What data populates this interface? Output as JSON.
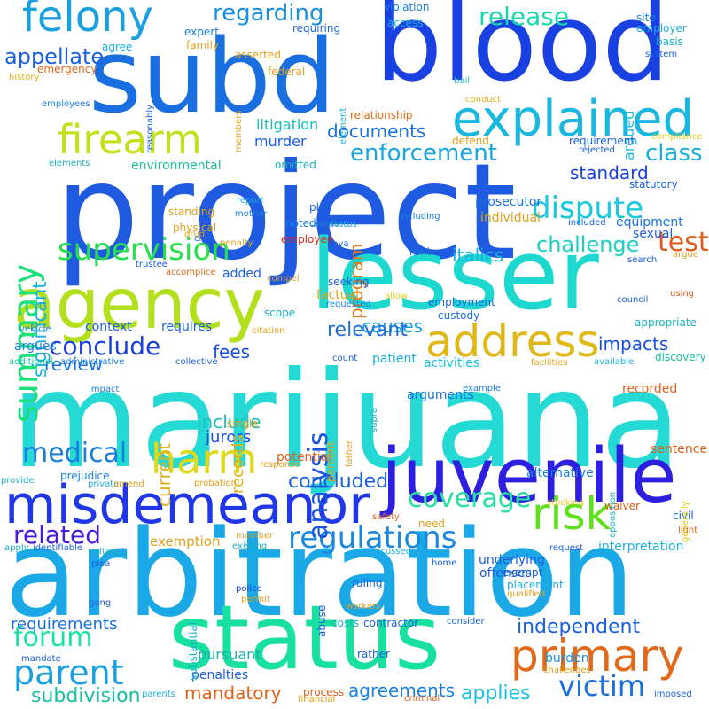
{
  "words": [
    {
      "text": "project",
      "color": "#1f5be0",
      "orientation": "horizontal"
    },
    {
      "text": "marijuana",
      "color": "#25d9d4",
      "orientation": "horizontal"
    },
    {
      "text": "arbitration",
      "color": "#1aa8e6",
      "orientation": "horizontal"
    },
    {
      "text": "blood",
      "color": "#1940e0",
      "orientation": "horizontal"
    },
    {
      "text": "subd",
      "color": "#1a6fe0",
      "orientation": "horizontal"
    },
    {
      "text": "lesser",
      "color": "#1cd8cf",
      "orientation": "horizontal"
    },
    {
      "text": "status",
      "color": "#18e0a0",
      "orientation": "horizontal"
    },
    {
      "text": "juvenile",
      "color": "#2d1fe0",
      "orientation": "horizontal"
    },
    {
      "text": "agency",
      "color": "#b2e01c",
      "orientation": "horizontal"
    },
    {
      "text": "misdemeanor",
      "color": "#1f37e8",
      "orientation": "horizontal"
    },
    {
      "text": "explained",
      "color": "#1ab8e0",
      "orientation": "horizontal"
    },
    {
      "text": "address",
      "color": "#e0b81a",
      "orientation": "horizontal"
    },
    {
      "text": "primary",
      "color": "#e06a1a",
      "orientation": "horizontal"
    },
    {
      "text": "felony",
      "color": "#1aa0e0",
      "orientation": "horizontal"
    },
    {
      "text": "firearm",
      "color": "#c4e01a",
      "orientation": "horizontal"
    },
    {
      "text": "risk",
      "color": "#5ee01a",
      "orientation": "horizontal"
    },
    {
      "text": "harm",
      "color": "#e0d81a",
      "orientation": "horizontal"
    },
    {
      "text": "summary",
      "color": "#1ce07a",
      "orientation": "vertical"
    },
    {
      "text": "supervision",
      "color": "#28e04e",
      "orientation": "horizontal"
    },
    {
      "text": "parent",
      "color": "#1a9fe0",
      "orientation": "horizontal"
    },
    {
      "text": "dispute",
      "color": "#1ac7e0",
      "orientation": "horizontal"
    },
    {
      "text": "regulations",
      "color": "#1a88e0",
      "orientation": "horizontal"
    },
    {
      "text": "coverage",
      "color": "#28e0a0",
      "orientation": "horizontal"
    },
    {
      "text": "medical",
      "color": "#1a80e0",
      "orientation": "horizontal"
    },
    {
      "text": "forum",
      "color": "#1ae0a8",
      "orientation": "horizontal"
    },
    {
      "text": "enforcement",
      "color": "#1aa5e0",
      "orientation": "horizontal"
    },
    {
      "text": "analysis",
      "color": "#1a55e0",
      "orientation": "vertical"
    },
    {
      "text": "victim",
      "color": "#1a70e0",
      "orientation": "horizontal"
    },
    {
      "text": "conclude",
      "color": "#1a40e0",
      "orientation": "horizontal"
    },
    {
      "text": "related",
      "color": "#4a1ae0",
      "orientation": "horizontal"
    },
    {
      "text": "regarding",
      "color": "#1a90e0",
      "orientation": "horizontal"
    },
    {
      "text": "release",
      "color": "#1ad8b0",
      "orientation": "horizontal"
    },
    {
      "text": "test",
      "color": "#e05a1a",
      "orientation": "horizontal"
    },
    {
      "text": "class",
      "color": "#1ab0e0",
      "orientation": "horizontal"
    },
    {
      "text": "significant",
      "color": "#1ab0e0",
      "orientation": "vertical"
    },
    {
      "text": "challenge",
      "color": "#1ad0c0",
      "orientation": "horizontal"
    },
    {
      "text": "independent",
      "color": "#1a60e0",
      "orientation": "horizontal"
    },
    {
      "text": "mandatory",
      "color": "#e0601a",
      "orientation": "horizontal"
    },
    {
      "text": "subdivision",
      "color": "#1ac0a0",
      "orientation": "horizontal"
    },
    {
      "text": "agreements",
      "color": "#1a80e0",
      "orientation": "horizontal"
    },
    {
      "text": "applies",
      "color": "#1ac0e0",
      "orientation": "horizontal"
    },
    {
      "text": "appellate",
      "color": "#1a60e0",
      "orientation": "horizontal"
    },
    {
      "text": "argued",
      "color": "#1ac0e0",
      "orientation": "vertical"
    },
    {
      "text": "documents",
      "color": "#1a70e0",
      "orientation": "horizontal"
    },
    {
      "text": "standard",
      "color": "#1a40e0",
      "orientation": "horizontal"
    },
    {
      "text": "italics",
      "color": "#1ab0e0",
      "orientation": "horizontal"
    },
    {
      "text": "impacts",
      "color": "#1a50e0",
      "orientation": "horizontal"
    },
    {
      "text": "fees",
      "color": "#1a50e0",
      "orientation": "horizontal"
    },
    {
      "text": "causes",
      "color": "#1aa0e0",
      "orientation": "horizontal"
    },
    {
      "text": "relevant",
      "color": "#1a70e0",
      "orientation": "horizontal"
    },
    {
      "text": "include",
      "color": "#1ac0c0",
      "orientation": "horizontal"
    },
    {
      "text": "current",
      "color": "#e0b01a",
      "orientation": "vertical"
    },
    {
      "text": "concluded",
      "color": "#1a60e0",
      "orientation": "horizontal"
    },
    {
      "text": "review",
      "color": "#1a70e0",
      "orientation": "horizontal"
    },
    {
      "text": "program",
      "color": "#e07a1a",
      "orientation": "vertical"
    },
    {
      "text": "burden",
      "color": "#1a90e0",
      "orientation": "horizontal"
    },
    {
      "text": "requirements",
      "color": "#1a70e0",
      "orientation": "horizontal"
    },
    {
      "text": "pursuant",
      "color": "#1ab0b0",
      "orientation": "horizontal"
    },
    {
      "text": "jurors",
      "color": "#1a50e0",
      "orientation": "horizontal"
    },
    {
      "text": "records",
      "color": "#e0b01a",
      "orientation": "vertical"
    },
    {
      "text": "exemption",
      "color": "#e0a01a",
      "orientation": "horizontal"
    },
    {
      "text": "environmental",
      "color": "#1ac0a0",
      "orientation": "horizontal"
    },
    {
      "text": "murder",
      "color": "#1a60e0",
      "orientation": "horizontal"
    },
    {
      "text": "litigation",
      "color": "#1ac0c0",
      "orientation": "horizontal"
    },
    {
      "text": "sentence",
      "color": "#e0601a",
      "orientation": "horizontal"
    },
    {
      "text": "recorded",
      "color": "#e0601a",
      "orientation": "horizontal"
    },
    {
      "text": "potential",
      "color": "#e0601a",
      "orientation": "horizontal"
    },
    {
      "text": "offenses",
      "color": "#1a60e0",
      "orientation": "horizontal"
    },
    {
      "text": "interpretation",
      "color": "#1ab0e0",
      "orientation": "horizontal"
    },
    {
      "text": "underlying",
      "color": "#1a60e0",
      "orientation": "horizontal"
    },
    {
      "text": "penalties",
      "color": "#1a60e0",
      "orientation": "horizontal"
    },
    {
      "text": "alternative",
      "color": "#1a80e0",
      "orientation": "horizontal"
    },
    {
      "text": "arguments",
      "color": "#1a70e0",
      "orientation": "horizontal"
    },
    {
      "text": "patient",
      "color": "#1ab0e0",
      "orientation": "horizontal"
    },
    {
      "text": "activities",
      "color": "#1ac0e0",
      "orientation": "horizontal"
    },
    {
      "text": "context",
      "color": "#1a60e0",
      "orientation": "horizontal"
    },
    {
      "text": "requires",
      "color": "#1a60e0",
      "orientation": "horizontal"
    },
    {
      "text": "argues",
      "color": "#1a80e0",
      "orientation": "horizontal"
    },
    {
      "text": "factual",
      "color": "#e0a01a",
      "orientation": "horizontal"
    },
    {
      "text": "prosecutor",
      "color": "#1a70e0",
      "orientation": "horizontal"
    },
    {
      "text": "individual",
      "color": "#e0a01a",
      "orientation": "horizontal"
    },
    {
      "text": "equipment",
      "color": "#1a70e0",
      "orientation": "horizontal"
    },
    {
      "text": "sexual",
      "color": "#1a60e0",
      "orientation": "horizontal"
    },
    {
      "text": "rent",
      "color": "#1a70e0",
      "orientation": "horizontal"
    },
    {
      "text": "added",
      "color": "#1a60e0",
      "orientation": "horizontal"
    },
    {
      "text": "standing",
      "color": "#e0a01a",
      "orientation": "horizontal"
    },
    {
      "text": "physical",
      "color": "#e0a01a",
      "orientation": "horizontal"
    },
    {
      "text": "employee",
      "color": "#e02a1a",
      "orientation": "horizontal"
    },
    {
      "text": "seeking",
      "color": "#1a60e0",
      "orientation": "horizontal"
    },
    {
      "text": "custody",
      "color": "#1a70e0",
      "orientation": "horizontal"
    },
    {
      "text": "employment",
      "color": "#1a60e0",
      "orientation": "horizontal"
    },
    {
      "text": "plan",
      "color": "#1a60e0",
      "orientation": "horizontal"
    },
    {
      "text": "noted",
      "color": "#1a80e0",
      "orientation": "horizontal"
    },
    {
      "text": "omitted",
      "color": "#1ab0c0",
      "orientation": "horizontal"
    },
    {
      "text": "federal",
      "color": "#e0a01a",
      "orientation": "horizontal"
    },
    {
      "text": "emergency",
      "color": "#e06a1a",
      "orientation": "horizontal"
    },
    {
      "text": "agree",
      "color": "#1ab0e0",
      "orientation": "horizontal"
    },
    {
      "text": "expert",
      "color": "#1a80e0",
      "orientation": "horizontal"
    },
    {
      "text": "requiring",
      "color": "#1a60e0",
      "orientation": "horizontal"
    },
    {
      "text": "violation",
      "color": "#1a80e0",
      "orientation": "horizontal"
    },
    {
      "text": "access",
      "color": "#1ab0e0",
      "orientation": "horizontal"
    },
    {
      "text": "site",
      "color": "#1a80e0",
      "orientation": "horizontal"
    },
    {
      "text": "employer",
      "color": "#1ab0e0",
      "orientation": "horizontal"
    },
    {
      "text": "basis",
      "color": "#1ab0c0",
      "orientation": "horizontal"
    },
    {
      "text": "system",
      "color": "#1a60e0",
      "orientation": "horizontal"
    },
    {
      "text": "family",
      "color": "#e0a01a",
      "orientation": "horizontal"
    },
    {
      "text": "asserted",
      "color": "#e0a01a",
      "orientation": "horizontal"
    },
    {
      "text": "history",
      "color": "#e0b01a",
      "orientation": "horizontal"
    },
    {
      "text": "employees",
      "color": "#1a80e0",
      "orientation": "horizontal"
    },
    {
      "text": "relationship",
      "color": "#e06a1a",
      "orientation": "horizontal"
    },
    {
      "text": "bail",
      "color": "#1ac0c0",
      "orientation": "horizontal"
    },
    {
      "text": "conduct",
      "color": "#e0b01a",
      "orientation": "horizontal"
    },
    {
      "text": "defend",
      "color": "#e0a01a",
      "orientation": "horizontal"
    },
    {
      "text": "requirement",
      "color": "#1a60e0",
      "orientation": "horizontal"
    },
    {
      "text": "rejected",
      "color": "#1a60e0",
      "orientation": "horizontal"
    },
    {
      "text": "compliance",
      "color": "#e0d01a",
      "orientation": "horizontal"
    },
    {
      "text": "elements",
      "color": "#1ab0c0",
      "orientation": "horizontal"
    },
    {
      "text": "statutory",
      "color": "#1a60e0",
      "orientation": "horizontal"
    },
    {
      "text": "penalty",
      "color": "#e0a01a",
      "orientation": "horizontal"
    },
    {
      "text": "report",
      "color": "#1ab0e0",
      "orientation": "horizontal"
    },
    {
      "text": "counts",
      "color": "#1a80e0",
      "orientation": "horizontal"
    },
    {
      "text": "mother",
      "color": "#1a80e0",
      "orientation": "horizontal"
    },
    {
      "text": "status",
      "color": "#1ab0e0",
      "orientation": "horizontal"
    },
    {
      "text": "including",
      "color": "#1a80e0",
      "orientation": "horizontal"
    },
    {
      "text": "included",
      "color": "#1a60e0",
      "orientation": "horizontal"
    },
    {
      "text": "drug",
      "color": "#e0a01a",
      "orientation": "horizontal"
    },
    {
      "text": "child",
      "color": "#1a60e0",
      "orientation": "horizontal"
    },
    {
      "text": "nova",
      "color": "#1a60e0",
      "orientation": "horizontal"
    },
    {
      "text": "argue",
      "color": "#e0a01a",
      "orientation": "horizontal"
    },
    {
      "text": "search",
      "color": "#1a60e0",
      "orientation": "horizontal"
    },
    {
      "text": "trustee",
      "color": "#1a60e0",
      "orientation": "horizontal"
    },
    {
      "text": "accomplice",
      "color": "#e06a1a",
      "orientation": "horizontal"
    },
    {
      "text": "compel",
      "color": "#e0a01a",
      "orientation": "horizontal"
    },
    {
      "text": "allow",
      "color": "#e0d01a",
      "orientation": "horizontal"
    },
    {
      "text": "requested",
      "color": "#1a80e0",
      "orientation": "horizontal"
    },
    {
      "text": "using",
      "color": "#e0601a",
      "orientation": "horizontal"
    },
    {
      "text": "council",
      "color": "#1a60e0",
      "orientation": "horizontal"
    },
    {
      "text": "scope",
      "color": "#1ab0c0",
      "orientation": "horizontal"
    },
    {
      "text": "vehicle",
      "color": "#1a80e0",
      "orientation": "horizontal"
    },
    {
      "text": "citation",
      "color": "#e0a01a",
      "orientation": "horizontal"
    },
    {
      "text": "appropriate",
      "color": "#1ab0c0",
      "orientation": "horizontal"
    },
    {
      "text": "additional",
      "color": "#1ac0a0",
      "orientation": "horizontal"
    },
    {
      "text": "administrative",
      "color": "#1a80e0",
      "orientation": "horizontal"
    },
    {
      "text": "collective",
      "color": "#1a60e0",
      "orientation": "horizontal"
    },
    {
      "text": "count",
      "color": "#1a60e0",
      "orientation": "horizontal"
    },
    {
      "text": "facilities",
      "color": "#e0a01a",
      "orientation": "horizontal"
    },
    {
      "text": "available",
      "color": "#1ab0e0",
      "orientation": "horizontal"
    },
    {
      "text": "discovery",
      "color": "#1ac0a0",
      "orientation": "horizontal"
    },
    {
      "text": "impact",
      "color": "#1a80e0",
      "orientation": "horizontal"
    },
    {
      "text": "example",
      "color": "#1a80e0",
      "orientation": "horizontal"
    },
    {
      "text": "single",
      "color": "#e0a01a",
      "orientation": "horizontal"
    },
    {
      "text": "response",
      "color": "#e0a01a",
      "orientation": "horizontal"
    },
    {
      "text": "provide",
      "color": "#1ab0c0",
      "orientation": "horizontal"
    },
    {
      "text": "prejudice",
      "color": "#1a80e0",
      "orientation": "horizontal"
    },
    {
      "text": "private",
      "color": "#1ab0e0",
      "orientation": "horizontal"
    },
    {
      "text": "amend",
      "color": "#e0a01a",
      "orientation": "horizontal"
    },
    {
      "text": "probation",
      "color": "#e0a01a",
      "orientation": "horizontal"
    },
    {
      "text": "stocking",
      "color": "#e0d01a",
      "orientation": "horizontal"
    },
    {
      "text": "waiver",
      "color": "#e0601a",
      "orientation": "horizontal"
    },
    {
      "text": "civil",
      "color": "#1a60e0",
      "orientation": "horizontal"
    },
    {
      "text": "light",
      "color": "#e0601a",
      "orientation": "horizontal"
    },
    {
      "text": "safety",
      "color": "#e0601a",
      "orientation": "horizontal"
    },
    {
      "text": "need",
      "color": "#e0a01a",
      "orientation": "horizontal"
    },
    {
      "text": "member",
      "color": "#e0a01a",
      "orientation": "horizontal"
    },
    {
      "text": "apply",
      "color": "#1ab0c0",
      "orientation": "horizontal"
    },
    {
      "text": "identifiable",
      "color": "#1a60e0",
      "orientation": "horizontal"
    },
    {
      "text": "existing",
      "color": "#1ab0c0",
      "orientation": "horizontal"
    },
    {
      "text": "discussed",
      "color": "#1ab0e0",
      "orientation": "horizontal"
    },
    {
      "text": "request",
      "color": "#1a60e0",
      "orientation": "horizontal"
    },
    {
      "text": "voltage",
      "color": "#1ab0c0",
      "orientation": "horizontal"
    },
    {
      "text": "home",
      "color": "#1a60e0",
      "orientation": "horizontal"
    },
    {
      "text": "exempt",
      "color": "#1a60e0",
      "orientation": "horizontal"
    },
    {
      "text": "plea",
      "color": "#1a60e0",
      "orientation": "horizontal"
    },
    {
      "text": "police",
      "color": "#1a40e0",
      "orientation": "horizontal"
    },
    {
      "text": "ruling",
      "color": "#1a60e0",
      "orientation": "horizontal"
    },
    {
      "text": "placement",
      "color": "#1ab0e0",
      "orientation": "horizontal"
    },
    {
      "text": "qualified",
      "color": "#e0a01a",
      "orientation": "horizontal"
    },
    {
      "text": "gang",
      "color": "#1a60e0",
      "orientation": "horizontal"
    },
    {
      "text": "permit",
      "color": "#e0a01a",
      "orientation": "horizontal"
    },
    {
      "text": "workers",
      "color": "#e0a01a",
      "orientation": "horizontal"
    },
    {
      "text": "costs",
      "color": "#1ab0c0",
      "orientation": "horizontal"
    },
    {
      "text": "contractor",
      "color": "#1a60e0",
      "orientation": "horizontal"
    },
    {
      "text": "consider",
      "color": "#1a60e0",
      "orientation": "horizontal"
    },
    {
      "text": "rather",
      "color": "#1a60e0",
      "orientation": "horizontal"
    },
    {
      "text": "mandate",
      "color": "#1a60e0",
      "orientation": "horizontal"
    },
    {
      "text": "process",
      "color": "#e0601a",
      "orientation": "horizontal"
    },
    {
      "text": "challenges",
      "color": "#e0a01a",
      "orientation": "horizontal"
    },
    {
      "text": "parents",
      "color": "#1ab0e0",
      "orientation": "horizontal"
    },
    {
      "text": "financial",
      "color": "#e0a01a",
      "orientation": "horizontal"
    },
    {
      "text": "criminal",
      "color": "#e0601a",
      "orientation": "horizontal"
    },
    {
      "text": "imposed",
      "color": "#1a60e0",
      "orientation": "horizontal"
    },
    {
      "text": "abuse",
      "color": "#1a60e0",
      "orientation": "vertical"
    },
    {
      "text": "substantial",
      "color": "#1ab0c0",
      "orientation": "vertical"
    },
    {
      "text": "percent",
      "color": "#e0a01a",
      "orientation": "vertical"
    },
    {
      "text": "father",
      "color": "#e0a01a",
      "orientation": "vertical"
    },
    {
      "text": "supra",
      "color": "#1ab0c0",
      "orientation": "vertical"
    },
    {
      "text": "members",
      "color": "#e0a01a",
      "orientation": "vertical"
    },
    {
      "text": "reasonably",
      "color": "#1a60e0",
      "orientation": "vertical"
    },
    {
      "text": "element",
      "color": "#1ab0e0",
      "orientation": "vertical"
    },
    {
      "text": "opposition",
      "color": "#1ab0c0",
      "orientation": "vertical"
    },
    {
      "text": "generally",
      "color": "#e0d01a",
      "orientation": "vertical"
    }
  ]
}
